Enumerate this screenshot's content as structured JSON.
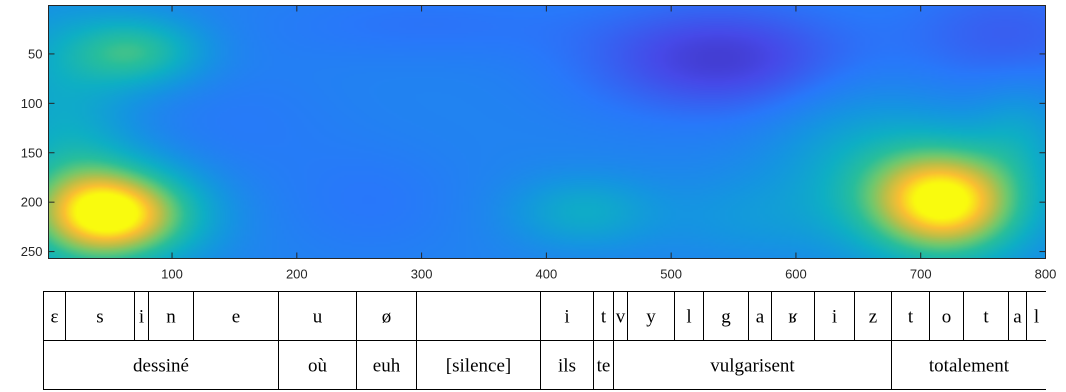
{
  "chart_data": {
    "type": "heatmap",
    "title": "",
    "xlabel": "",
    "ylabel": "",
    "xlim": [
      1,
      800
    ],
    "ylim": [
      1,
      257
    ],
    "y_direction": "reversed",
    "grid": false,
    "colormap": "parula",
    "x_ticks": [
      100,
      200,
      300,
      400,
      500,
      600,
      700,
      800
    ],
    "y_ticks": [
      50,
      100,
      150,
      200,
      250
    ],
    "x_tick_labels": [
      "100",
      "200",
      "300",
      "400",
      "500",
      "600",
      "700",
      "800"
    ],
    "y_tick_labels": [
      "50",
      "100",
      "150",
      "200",
      "250"
    ],
    "color_range": [
      0,
      1
    ],
    "base_level": 0.3,
    "features": [
      {
        "x": 55,
        "y": 212,
        "sx": 45,
        "sy": 33,
        "level": 0.68
      },
      {
        "x": 720,
        "y": 200,
        "sx": 45,
        "sy": 40,
        "level": 0.72
      },
      {
        "x": 25,
        "y": 195,
        "sx": 35,
        "sy": 60,
        "level": 0.15
      },
      {
        "x": 70,
        "y": 48,
        "sx": 38,
        "sy": 25,
        "level": 0.32
      },
      {
        "x": 5,
        "y": 90,
        "sx": 40,
        "sy": 70,
        "level": 0.13
      },
      {
        "x": 430,
        "y": 210,
        "sx": 40,
        "sy": 25,
        "level": 0.18
      },
      {
        "x": 650,
        "y": 160,
        "sx": 50,
        "sy": 55,
        "level": 0.15
      },
      {
        "x": 560,
        "y": 215,
        "sx": 50,
        "sy": 30,
        "level": 0.08
      },
      {
        "x": 780,
        "y": 130,
        "sx": 25,
        "sy": 35,
        "level": 0.12
      },
      {
        "x": 540,
        "y": 55,
        "sx": 75,
        "sy": 40,
        "level": -0.22
      },
      {
        "x": 770,
        "y": 30,
        "sx": 60,
        "sy": 40,
        "level": -0.12
      },
      {
        "x": 300,
        "y": 20,
        "sx": 90,
        "sy": 25,
        "level": -0.06
      },
      {
        "x": 260,
        "y": 200,
        "sx": 50,
        "sy": 40,
        "level": -0.05
      },
      {
        "x": 150,
        "y": 120,
        "sx": 60,
        "sy": 45,
        "level": -0.04
      }
    ],
    "phonemes": [
      {
        "label": "ɛ",
        "x_start": 0,
        "x_end": 22
      },
      {
        "label": "s",
        "x_start": 22,
        "x_end": 91
      },
      {
        "label": "i",
        "x_start": 91,
        "x_end": 105
      },
      {
        "label": "n",
        "x_start": 105,
        "x_end": 150
      },
      {
        "label": "e",
        "x_start": 150,
        "x_end": 235
      },
      {
        "label": "u",
        "x_start": 235,
        "x_end": 313
      },
      {
        "label": "ø",
        "x_start": 313,
        "x_end": 373
      },
      {
        "label": "",
        "x_start": 373,
        "x_end": 497
      },
      {
        "label": "i",
        "x_start": 497,
        "x_end": 550
      },
      {
        "label": "t",
        "x_start": 550,
        "x_end": 570
      },
      {
        "label": "v",
        "x_start": 570,
        "x_end": 584
      },
      {
        "label": "y",
        "x_start": 584,
        "x_end": 631
      },
      {
        "label": "l",
        "x_start": 631,
        "x_end": 660
      },
      {
        "label": "g",
        "x_start": 660,
        "x_end": 705
      },
      {
        "label": "a",
        "x_start": 705,
        "x_end": 728
      },
      {
        "label": "ʁ",
        "x_start": 728,
        "x_end": 771
      },
      {
        "label": "i",
        "x_start": 771,
        "x_end": 811
      },
      {
        "label": "z",
        "x_start": 811,
        "x_end": 848
      },
      {
        "label": "t",
        "x_start": 848,
        "x_end": 886
      },
      {
        "label": "o",
        "x_start": 886,
        "x_end": 920
      },
      {
        "label": "t",
        "x_start": 920,
        "x_end": 965
      },
      {
        "label": "a",
        "x_start": 965,
        "x_end": 983
      },
      {
        "label": "l",
        "x_start": 983,
        "x_end": 1003
      }
    ],
    "words": [
      {
        "label": "dessiné",
        "x_start": 0,
        "x_end": 235
      },
      {
        "label": "où",
        "x_start": 235,
        "x_end": 313
      },
      {
        "label": "euh",
        "x_start": 313,
        "x_end": 373
      },
      {
        "label": "[silence]",
        "x_start": 373,
        "x_end": 497
      },
      {
        "label": "ils",
        "x_start": 497,
        "x_end": 550
      },
      {
        "label": "te",
        "x_start": 550,
        "x_end": 570
      },
      {
        "label": "vulgarisent",
        "x_start": 570,
        "x_end": 848
      },
      {
        "label": "totalement",
        "x_start": 848,
        "x_end": 1003
      }
    ]
  }
}
